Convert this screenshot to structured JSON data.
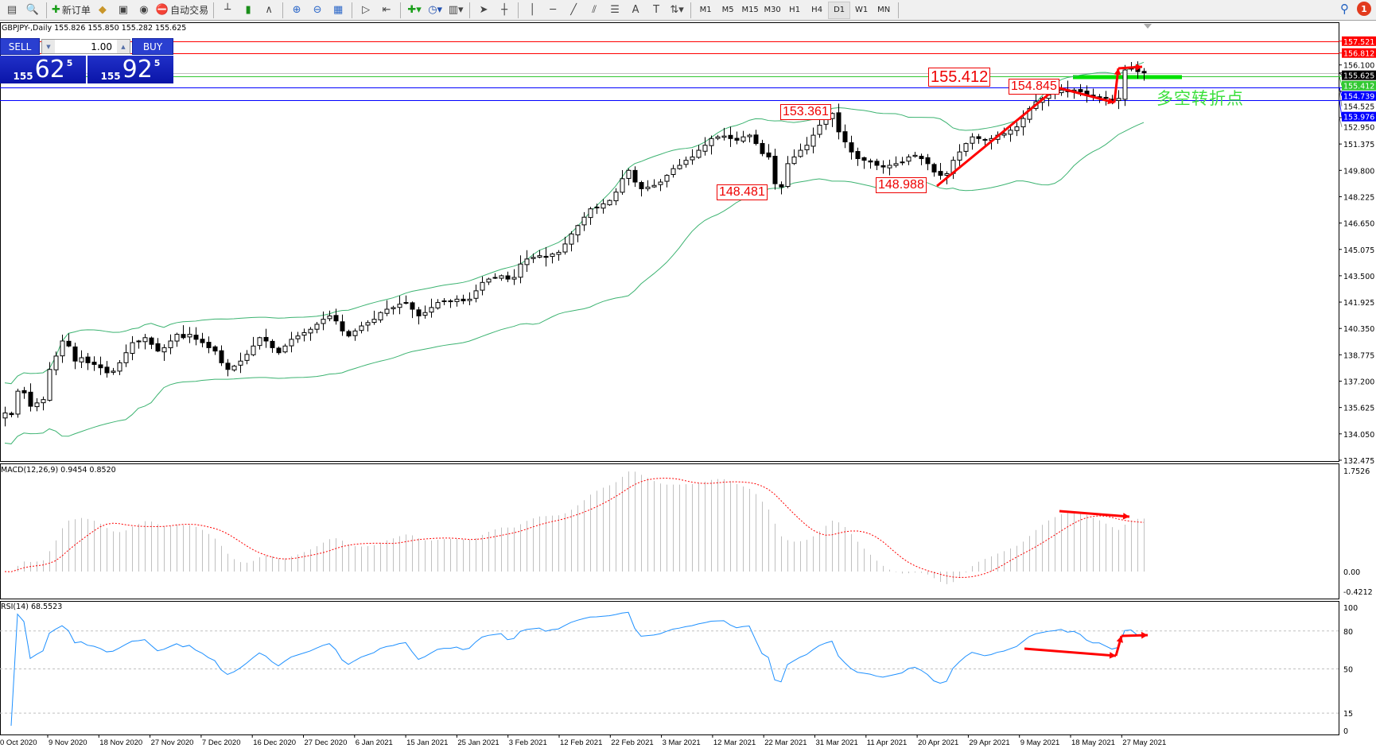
{
  "toolbar": {
    "buttons": [
      {
        "icon": "new-chart-icon",
        "label": ""
      },
      {
        "icon": "zoom-window-icon",
        "label": ""
      },
      {
        "sep": true
      },
      {
        "icon": "new-order-icon",
        "label": "新订单"
      },
      {
        "icon": "market-watch-icon",
        "label": ""
      },
      {
        "icon": "navigator-icon",
        "label": ""
      },
      {
        "icon": "signals-icon",
        "label": ""
      },
      {
        "icon": "auto-trading-icon",
        "label": "自动交易"
      },
      {
        "sep": true
      },
      {
        "icon": "bar-chart-icon",
        "label": ""
      },
      {
        "icon": "candlestick-icon",
        "label": ""
      },
      {
        "icon": "line-chart-icon",
        "label": ""
      },
      {
        "sep": true
      },
      {
        "icon": "zoom-in-icon",
        "label": ""
      },
      {
        "icon": "zoom-out-icon",
        "label": ""
      },
      {
        "icon": "tile-windows-icon",
        "label": ""
      },
      {
        "sep": true
      },
      {
        "icon": "auto-scroll-icon",
        "label": ""
      },
      {
        "icon": "chart-shift-icon",
        "label": ""
      },
      {
        "sep": true
      },
      {
        "icon": "indicators-icon",
        "label": ""
      },
      {
        "icon": "periods-icon",
        "label": ""
      },
      {
        "icon": "templates-icon",
        "label": ""
      },
      {
        "sep": true
      },
      {
        "icon": "cursor-icon",
        "label": ""
      },
      {
        "icon": "crosshair-icon",
        "label": ""
      },
      {
        "sep": true
      },
      {
        "icon": "vertical-line-icon",
        "label": ""
      },
      {
        "icon": "horizontal-line-icon",
        "label": ""
      },
      {
        "icon": "trendline-icon",
        "label": ""
      },
      {
        "icon": "equidistant-channel-icon",
        "label": ""
      },
      {
        "icon": "fibonacci-icon",
        "label": ""
      },
      {
        "icon": "text-icon",
        "label": ""
      },
      {
        "icon": "text-label-icon",
        "label": ""
      },
      {
        "icon": "arrows-icon",
        "label": ""
      },
      {
        "sep": true
      }
    ],
    "timeframes": [
      "M1",
      "M5",
      "M15",
      "M30",
      "H1",
      "H4",
      "D1",
      "W1",
      "MN"
    ],
    "active_timeframe": "D1",
    "notification_count": "1"
  },
  "chart": {
    "symbol_line": "GBPJPY-,Daily  155.826 155.850 155.282 155.625",
    "one_click": {
      "sell_label": "SELL",
      "buy_label": "BUY",
      "lot": "1.00",
      "sell_price": {
        "prefix": "155",
        "big": "62",
        "sup": "5"
      },
      "buy_price": {
        "prefix": "155",
        "big": "92",
        "sup": "5"
      }
    },
    "price_ticks": [
      "156.100",
      "154.525",
      "152.950",
      "151.375",
      "149.800",
      "148.225",
      "146.650",
      "145.075",
      "143.500",
      "141.925",
      "140.350",
      "138.775",
      "137.200",
      "135.625",
      "134.050",
      "132.475"
    ],
    "levels": [
      {
        "price": "157.521",
        "color": "#ff0000"
      },
      {
        "price": "156.812",
        "color": "#ff0000"
      },
      {
        "price": "155.625",
        "color": "#000000",
        "line": "#c0c0c0"
      },
      {
        "price": "155.412",
        "color": "#32c832"
      },
      {
        "price": "154.739",
        "color": "#0000ff"
      },
      {
        "price": "153.976",
        "color": "#0000ff"
      }
    ],
    "annotations": {
      "a1": "155.412",
      "a2": "154.845",
      "a3": "153.361",
      "a4": "148.481",
      "a5": "148.988"
    },
    "pivot_note": "多空转折点",
    "closes": [
      135.3,
      135.2,
      136.6,
      136.5,
      135.7,
      135.9,
      136.1,
      137.9,
      138.7,
      139.6,
      139.3,
      138.4,
      138.6,
      138.3,
      138.2,
      138.0,
      137.7,
      137.8,
      138.3,
      138.9,
      139.5,
      139.6,
      139.8,
      139.4,
      139.0,
      139.2,
      139.6,
      140.0,
      139.8,
      140.0,
      139.7,
      139.5,
      139.2,
      139.0,
      138.3,
      137.9,
      138.1,
      138.4,
      138.8,
      139.3,
      139.8,
      139.6,
      139.2,
      138.9,
      139.3,
      139.7,
      139.9,
      140.1,
      140.3,
      140.6,
      140.9,
      141.1,
      140.8,
      140.2,
      139.9,
      140.2,
      140.5,
      140.7,
      140.9,
      141.3,
      141.5,
      141.6,
      141.8,
      141.9,
      141.5,
      141.1,
      141.3,
      141.6,
      141.9,
      142.0,
      142.0,
      142.1,
      142.0,
      142.1,
      142.6,
      143.1,
      143.3,
      143.4,
      143.5,
      143.3,
      143.4,
      144.2,
      144.5,
      144.6,
      144.7,
      144.6,
      144.8,
      144.9,
      145.4,
      146.0,
      146.5,
      147.0,
      147.5,
      147.6,
      147.8,
      148.0,
      148.5,
      149.3,
      149.8,
      149.1,
      148.7,
      148.8,
      148.9,
      149.1,
      149.5,
      149.9,
      150.1,
      150.4,
      150.6,
      151.0,
      151.3,
      151.7,
      151.8,
      151.85,
      151.7,
      151.6,
      151.8,
      151.9,
      151.4,
      150.8,
      150.6,
      149.0,
      148.8,
      150.2,
      150.6,
      151.0,
      151.3,
      151.9,
      152.5,
      152.9,
      153.2,
      152.1,
      151.5,
      150.9,
      150.5,
      150.4,
      150.3,
      150.1,
      150.0,
      150.1,
      150.2,
      150.3,
      150.6,
      150.7,
      150.5,
      150.2,
      149.7,
      149.5,
      149.6,
      150.4,
      150.9,
      151.4,
      151.8,
      151.7,
      151.6,
      151.7,
      151.9,
      152.0,
      152.2,
      152.4,
      152.9,
      153.5,
      153.9,
      154.1,
      154.3,
      154.4,
      154.6,
      154.5,
      154.6,
      154.5,
      154.3,
      154.2,
      154.2,
      154.1,
      154.0,
      154.1,
      155.8,
      155.9,
      155.7,
      155.63
    ],
    "band_color": "#3cb371",
    "arrow_color": "#ff0000"
  },
  "macd": {
    "label": "MACD(12,26,9) 0.9454 0.8520",
    "ticks": [
      "1.7526",
      "0.00",
      "-0.4212"
    ],
    "histogram_color": "#c0c0c0",
    "signal_color": "#ff0000"
  },
  "rsi": {
    "label": "RSI(14) 68.5523",
    "ticks": [
      "100",
      "80",
      "50",
      "15",
      "0"
    ],
    "line_color": "#1e90ff"
  },
  "dates": [
    "0 Oct 2020",
    "9 Nov 2020",
    "18 Nov 2020",
    "27 Nov 2020",
    "7 Dec 2020",
    "16 Dec 2020",
    "27 Dec 2020",
    "6 Jan 2021",
    "15 Jan 2021",
    "25 Jan 2021",
    "3 Feb 2021",
    "12 Feb 2021",
    "22 Feb 2021",
    "3 Mar 2021",
    "12 Mar 2021",
    "22 Mar 2021",
    "31 Mar 2021",
    "11 Apr 2021",
    "20 Apr 2021",
    "29 Apr 2021",
    "9 May 2021",
    "18 May 2021",
    "27 May 2021"
  ]
}
